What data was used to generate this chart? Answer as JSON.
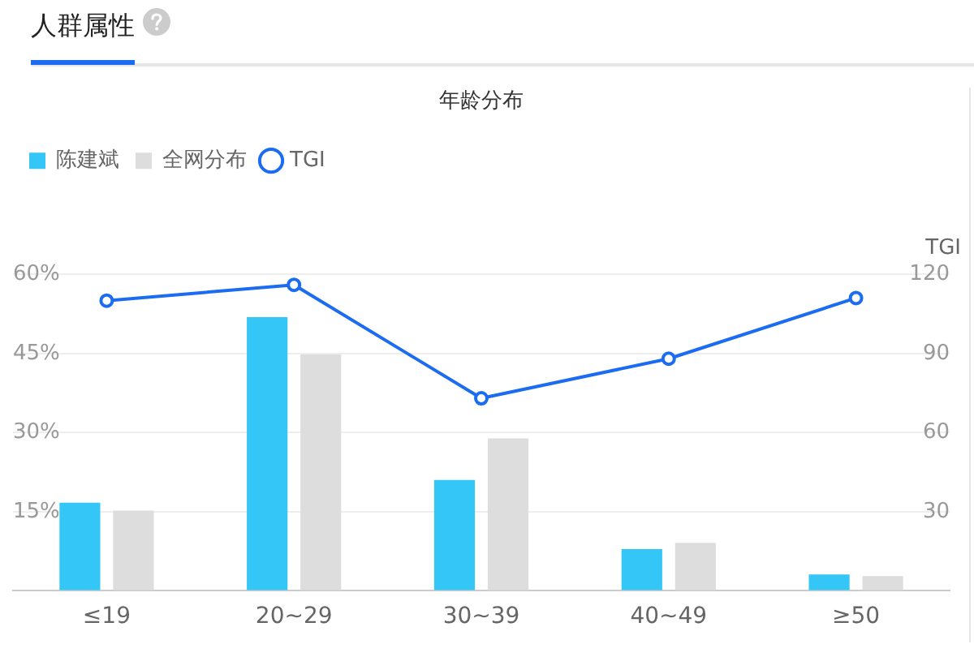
{
  "chart_data": {
    "type": "bar",
    "title": "年龄分布",
    "annotations": [
      "人群属性"
    ],
    "y2label": "TGI",
    "categories": [
      "≤19",
      "20~29",
      "30~39",
      "40~49",
      "≥50"
    ],
    "series": [
      {
        "name": "陈建斌",
        "color": "#33c6f7",
        "values": [
          16.7,
          51.9,
          21.0,
          7.9,
          3.1
        ]
      },
      {
        "name": "全网分布",
        "color": "#dddddd",
        "values": [
          15.2,
          44.8,
          28.9,
          9.1,
          2.8
        ]
      },
      {
        "name": "TGI",
        "type": "line",
        "axis": "y2",
        "color": "#1c6cf1",
        "values": [
          110,
          116,
          73,
          88,
          111
        ]
      }
    ],
    "ylim": [
      0,
      60
    ],
    "yticks": [
      {
        "value": 0,
        "label": null
      },
      {
        "value": 15,
        "label": "15%"
      },
      {
        "value": 30,
        "label": "30%"
      },
      {
        "value": 45,
        "label": "45%"
      },
      {
        "value": 60,
        "label": "60%"
      }
    ],
    "y2lim": [
      0,
      120
    ],
    "y2ticks": [
      30,
      60,
      90,
      120
    ],
    "grid": "y",
    "legend": "top left",
    "marker": "circle"
  }
}
